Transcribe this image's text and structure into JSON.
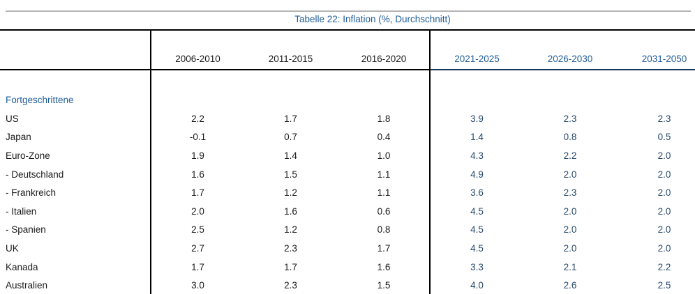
{
  "title": "Tabelle 22: Inflation (%, Durchschnitt)",
  "columns": {
    "historical": [
      "2006-2010",
      "2011-2015",
      "2016-2020"
    ],
    "forecast": [
      "2021-2025",
      "2026-2030",
      "2031-2050"
    ]
  },
  "group_label": "Fortgeschrittene",
  "rows": [
    {
      "label": "US",
      "values": [
        "2.2",
        "1.7",
        "1.8",
        "3.9",
        "2.3",
        "2.3"
      ]
    },
    {
      "label": "Japan",
      "values": [
        "-0.1",
        "0.7",
        "0.4",
        "1.4",
        "0.8",
        "0.5"
      ]
    },
    {
      "label": "Euro-Zone",
      "values": [
        "1.9",
        "1.4",
        "1.0",
        "4.3",
        "2.2",
        "2.0"
      ]
    },
    {
      "label": "- Deutschland",
      "values": [
        "1.6",
        "1.5",
        "1.1",
        "4.9",
        "2.0",
        "2.0"
      ]
    },
    {
      "label": "- Frankreich",
      "values": [
        "1.7",
        "1.2",
        "1.1",
        "3.6",
        "2.3",
        "2.0"
      ]
    },
    {
      "label": "- Italien",
      "values": [
        "2.0",
        "1.6",
        "0.6",
        "4.5",
        "2.0",
        "2.0"
      ]
    },
    {
      "label": "- Spanien",
      "values": [
        "2.5",
        "1.2",
        "0.8",
        "4.5",
        "2.0",
        "2.0"
      ]
    },
    {
      "label": "UK",
      "values": [
        "2.7",
        "2.3",
        "1.7",
        "4.5",
        "2.0",
        "2.0"
      ]
    },
    {
      "label": "Kanada",
      "values": [
        "1.7",
        "1.7",
        "1.6",
        "3.3",
        "2.1",
        "2.2"
      ]
    },
    {
      "label": "Australien",
      "values": [
        "3.0",
        "2.3",
        "1.5",
        "4.0",
        "2.6",
        "2.5"
      ]
    }
  ],
  "colors": {
    "accent_blue": "#1F5C99",
    "forecast_value_blue": "#27496D",
    "text_black": "#1A1A1A",
    "top_rule_gray": "#B4B4B4",
    "forecast_header_underline_navy": "#17365D",
    "table_border_black": "#000000"
  }
}
